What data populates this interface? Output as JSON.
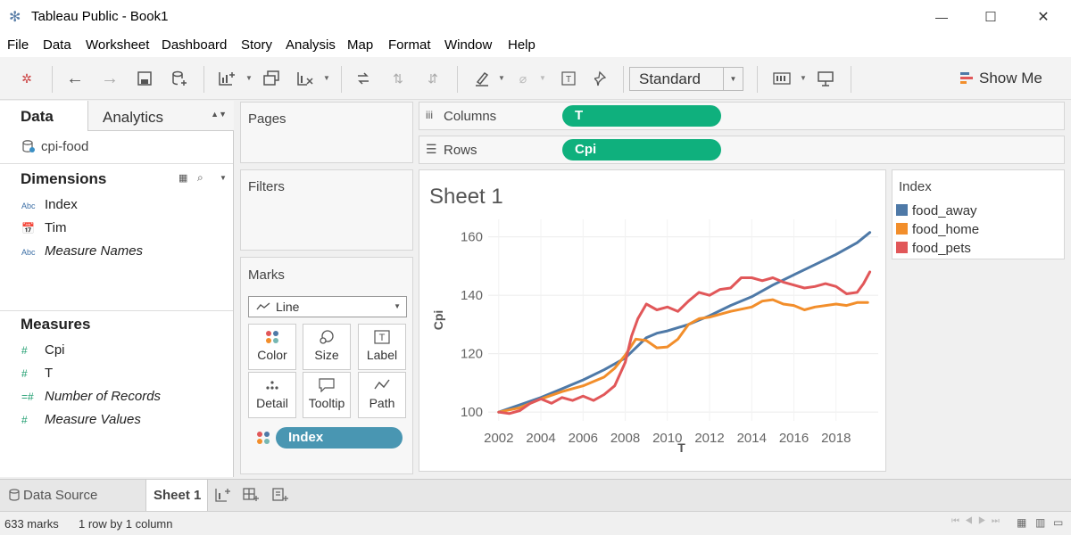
{
  "window": {
    "title": "Tableau Public - Book1",
    "minimize": "—",
    "maximize": "☐",
    "close": "✕"
  },
  "menu": [
    "File",
    "Data",
    "Worksheet",
    "Dashboard",
    "Story",
    "Analysis",
    "Map",
    "Format",
    "Window",
    "Help"
  ],
  "toolbar": {
    "fit_mode": "Standard",
    "show_me": "Show Me"
  },
  "data_pane": {
    "tab_data": "Data",
    "tab_analytics": "Analytics",
    "datasource": "cpi-food",
    "dimensions_header": "Dimensions",
    "dimensions": [
      {
        "type": "Abc",
        "name": "Index"
      },
      {
        "type": "date",
        "name": "Tim"
      },
      {
        "type": "Abc",
        "name": "Measure Names"
      }
    ],
    "measures_header": "Measures",
    "measures": [
      {
        "type": "#",
        "name": "Cpi"
      },
      {
        "type": "#",
        "name": "T"
      },
      {
        "type": "=#",
        "name": "Number of Records"
      },
      {
        "type": "#",
        "name": "Measure Values"
      }
    ]
  },
  "shelves": {
    "pages": "Pages",
    "filters": "Filters",
    "columns_label": "Columns",
    "rows_label": "Rows",
    "columns_pill": "T",
    "rows_pill": "Cpi"
  },
  "marks": {
    "title": "Marks",
    "type": "Line",
    "buttons": [
      "Color",
      "Size",
      "Label",
      "Detail",
      "Tooltip",
      "Path"
    ],
    "color_pill": "Index"
  },
  "sheet": {
    "title": "Sheet 1"
  },
  "legend": {
    "title": "Index",
    "items": [
      {
        "name": "food_away",
        "color": "#4e79a7"
      },
      {
        "name": "food_home",
        "color": "#f28e2b"
      },
      {
        "name": "food_pets",
        "color": "#e15759"
      }
    ]
  },
  "chart_data": {
    "type": "line",
    "xlabel": "T",
    "ylabel": "Cpi",
    "xlim": [
      2001.5,
      2020
    ],
    "ylim": [
      97,
      166
    ],
    "x_ticks": [
      2002,
      2004,
      2006,
      2008,
      2010,
      2012,
      2014,
      2016,
      2018
    ],
    "y_ticks": [
      100,
      120,
      140,
      160
    ],
    "series": [
      {
        "name": "food_away",
        "color": "#4e79a7",
        "x": [
          2002,
          2003,
          2004,
          2005,
          2006,
          2007,
          2008,
          2008.5,
          2009,
          2009.5,
          2010,
          2011,
          2012,
          2013,
          2014,
          2015,
          2016,
          2017,
          2018,
          2019,
          2019.6
        ],
        "y": [
          100,
          102.5,
          105,
          108,
          111,
          114.5,
          118.5,
          122,
          125.5,
          127,
          127.8,
          130,
          133,
          136.5,
          139.5,
          143.5,
          147,
          150.5,
          154,
          158,
          161.5
        ]
      },
      {
        "name": "food_home",
        "color": "#f28e2b",
        "x": [
          2002,
          2003,
          2004,
          2005,
          2006,
          2007,
          2007.5,
          2008,
          2008.5,
          2009,
          2009.5,
          2010,
          2010.5,
          2011,
          2011.5,
          2012,
          2013,
          2014,
          2014.5,
          2015,
          2015.5,
          2016,
          2016.5,
          2017,
          2018,
          2018.5,
          2019,
          2019.5
        ],
        "y": [
          100,
          101.5,
          104.5,
          107,
          109,
          112,
          115,
          119.5,
          125,
          124.5,
          122,
          122.3,
          125,
          130,
          132,
          132.5,
          134.5,
          136,
          138,
          138.5,
          137,
          136.5,
          135,
          136,
          137,
          136.5,
          137.5,
          137.5
        ]
      },
      {
        "name": "food_pets",
        "color": "#e15759",
        "x": [
          2002,
          2002.5,
          2003,
          2003.5,
          2004,
          2004.5,
          2005,
          2005.5,
          2006,
          2006.5,
          2007,
          2007.5,
          2008,
          2008.3,
          2008.6,
          2009,
          2009.5,
          2010,
          2010.5,
          2011,
          2011.5,
          2012,
          2012.5,
          2013,
          2013.5,
          2014,
          2014.5,
          2015,
          2015.5,
          2016,
          2016.5,
          2017,
          2017.5,
          2018,
          2018.5,
          2019,
          2019.3,
          2019.6
        ],
        "y": [
          100,
          99.5,
          100.5,
          103,
          104.5,
          103,
          105,
          104,
          105.5,
          104,
          106,
          109,
          117,
          126,
          132,
          137,
          135,
          136,
          134.5,
          138,
          141,
          140,
          142,
          142.5,
          146,
          146,
          145,
          146,
          144.5,
          143.5,
          142.5,
          143,
          144,
          143,
          140.5,
          141,
          144,
          148
        ]
      }
    ]
  },
  "bottom_tabs": {
    "datasource": "Data Source",
    "sheet": "Sheet 1"
  },
  "status": {
    "marks": "633 marks",
    "layout": "1 row by 1 column"
  }
}
